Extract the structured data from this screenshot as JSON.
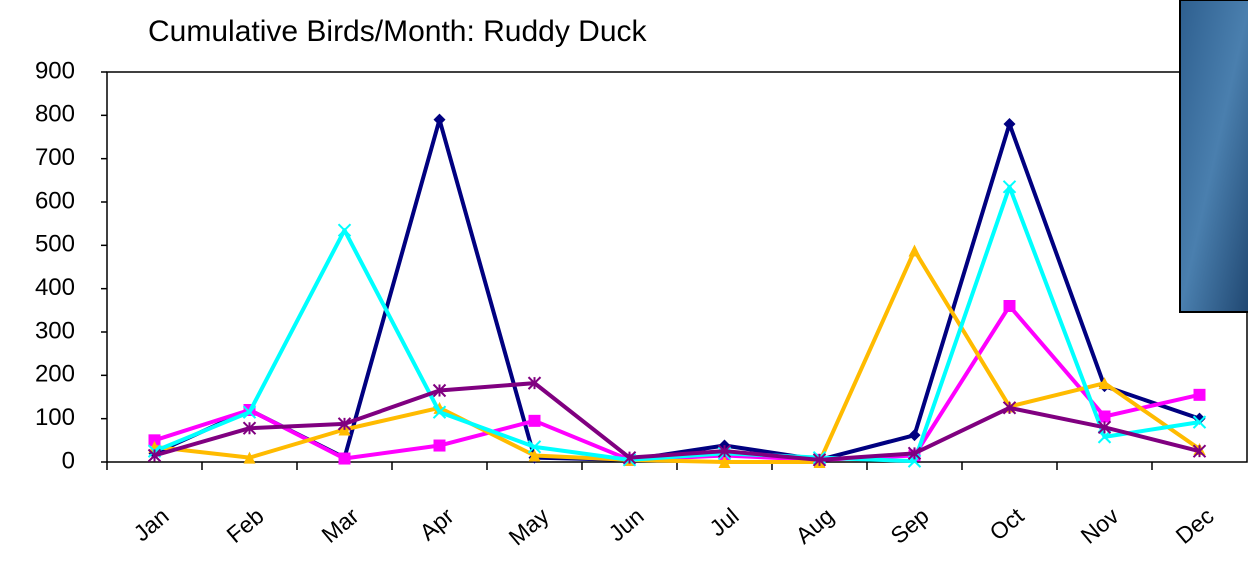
{
  "chart_data": {
    "type": "line",
    "title": "Cumulative Birds/Month: Ruddy Duck",
    "categories": [
      "Jan",
      "Feb",
      "Mar",
      "Apr",
      "May",
      "Jun",
      "Jul",
      "Aug",
      "Sep",
      "Oct",
      "Nov",
      "Dec"
    ],
    "series": [
      {
        "color": "#000080",
        "marker": "diamond",
        "values": [
          20,
          120,
          10,
          790,
          10,
          5,
          38,
          5,
          62,
          780,
          175,
          100
        ]
      },
      {
        "color": "#ff00ff",
        "marker": "square",
        "values": [
          50,
          120,
          8,
          38,
          95,
          5,
          15,
          5,
          15,
          360,
          105,
          155
        ]
      },
      {
        "color": "#ffbb00",
        "marker": "triangle",
        "values": [
          35,
          10,
          75,
          125,
          15,
          5,
          0,
          0,
          488,
          128,
          182,
          30
        ]
      },
      {
        "color": "#00ffff",
        "marker": "x",
        "values": [
          25,
          115,
          535,
          115,
          35,
          5,
          20,
          10,
          2,
          635,
          58,
          92
        ]
      },
      {
        "color": "#800080",
        "marker": "star",
        "values": [
          15,
          78,
          88,
          165,
          182,
          10,
          25,
          5,
          20,
          125,
          80,
          25
        ]
      }
    ],
    "ylim": [
      0,
      900
    ],
    "yticks": [
      0,
      100,
      200,
      300,
      400,
      500,
      600,
      700,
      800,
      900
    ],
    "grid": false
  }
}
